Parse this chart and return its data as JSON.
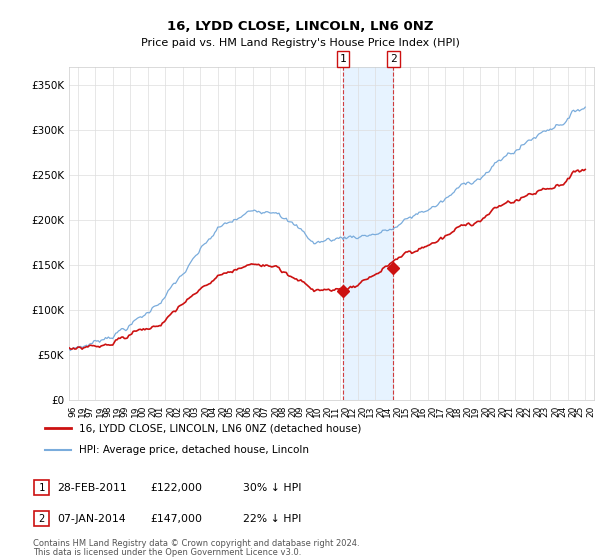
{
  "title": "16, LYDD CLOSE, LINCOLN, LN6 0NZ",
  "subtitle": "Price paid vs. HM Land Registry's House Price Index (HPI)",
  "hpi_color": "#7aacdc",
  "price_color": "#cc1111",
  "sale1_t": 2011.167,
  "sale1_price": 122000,
  "sale1_date": "28-FEB-2011",
  "sale1_pct": "30% ↓ HPI",
  "sale2_t": 2014.042,
  "sale2_price": 147000,
  "sale2_date": "07-JAN-2014",
  "sale2_pct": "22% ↓ HPI",
  "legend_label1": "16, LYDD CLOSE, LINCOLN, LN6 0NZ (detached house)",
  "legend_label2": "HPI: Average price, detached house, Lincoln",
  "footnote1": "Contains HM Land Registry data © Crown copyright and database right 2024.",
  "footnote2": "This data is licensed under the Open Government Licence v3.0.",
  "ylim": [
    0,
    370000
  ],
  "yticks": [
    0,
    50000,
    100000,
    150000,
    200000,
    250000,
    300000,
    350000
  ],
  "ytick_labels": [
    "£0",
    "£50K",
    "£100K",
    "£150K",
    "£200K",
    "£250K",
    "£300K",
    "£350K"
  ],
  "xlim_start": 1995.5,
  "xlim_end": 2025.5,
  "xtick_start": 1996,
  "xtick_end": 2025,
  "background_color": "#ffffff",
  "grid_color": "#dddddd",
  "span_color": "#ddeeff"
}
